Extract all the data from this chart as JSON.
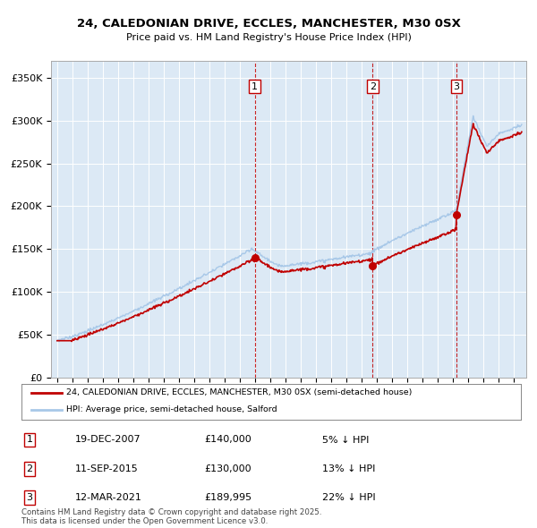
{
  "title_line1": "24, CALEDONIAN DRIVE, ECCLES, MANCHESTER, M30 0SX",
  "title_line2": "Price paid vs. HM Land Registry's House Price Index (HPI)",
  "ylim": [
    0,
    370000
  ],
  "yticks": [
    0,
    50000,
    100000,
    150000,
    200000,
    250000,
    300000,
    350000
  ],
  "hpi_line_color": "#a8c8e8",
  "price_line_color": "#c00000",
  "vline_color": "#c00000",
  "chart_bg_color": "#dce9f5",
  "background_color": "#ffffff",
  "grid_color": "#ffffff",
  "legend_entries": [
    "24, CALEDONIAN DRIVE, ECCLES, MANCHESTER, M30 0SX (semi-detached house)",
    "HPI: Average price, semi-detached house, Salford"
  ],
  "annotation_rows": [
    {
      "num": 1,
      "date": "19-DEC-2007",
      "price": "£140,000",
      "hpi": "5% ↓ HPI"
    },
    {
      "num": 2,
      "date": "11-SEP-2015",
      "price": "£130,000",
      "hpi": "13% ↓ HPI"
    },
    {
      "num": 3,
      "date": "12-MAR-2021",
      "price": "£189,995",
      "hpi": "22% ↓ HPI"
    }
  ],
  "footer_text": "Contains HM Land Registry data © Crown copyright and database right 2025.\nThis data is licensed under the Open Government Licence v3.0.",
  "sale_times": [
    1995.92,
    2007.97,
    2015.71,
    2021.21
  ],
  "sale_prices_val": [
    43000,
    140000,
    130000,
    189995
  ]
}
